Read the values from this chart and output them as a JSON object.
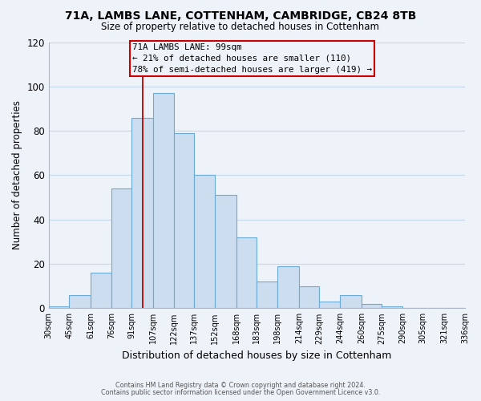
{
  "title1": "71A, LAMBS LANE, COTTENHAM, CAMBRIDGE, CB24 8TB",
  "title2": "Size of property relative to detached houses in Cottenham",
  "xlabel": "Distribution of detached houses by size in Cottenham",
  "ylabel": "Number of detached properties",
  "bin_edges": [
    30,
    45,
    61,
    76,
    91,
    107,
    122,
    137,
    152,
    168,
    183,
    198,
    214,
    229,
    244,
    260,
    275,
    290,
    305,
    321,
    336
  ],
  "bar_heights": [
    1,
    6,
    16,
    54,
    86,
    97,
    79,
    60,
    51,
    32,
    12,
    19,
    10,
    3,
    6,
    2,
    1,
    0,
    0,
    0
  ],
  "bar_color": "#ccddf0",
  "bar_edge_color": "#6aaad4",
  "grid_color": "#c8d8ec",
  "property_line_x": 99,
  "property_line_color": "#bb0000",
  "annotation_line1": "71A LAMBS LANE: 99sqm",
  "annotation_line2": "← 21% of detached houses are smaller (110)",
  "annotation_line3": "78% of semi-detached houses are larger (419) →",
  "annotation_box_color": "#cc0000",
  "ylim": [
    0,
    120
  ],
  "yticks": [
    0,
    20,
    40,
    60,
    80,
    100,
    120
  ],
  "xtick_labels": [
    "30sqm",
    "45sqm",
    "61sqm",
    "76sqm",
    "91sqm",
    "107sqm",
    "122sqm",
    "137sqm",
    "152sqm",
    "168sqm",
    "183sqm",
    "198sqm",
    "214sqm",
    "229sqm",
    "244sqm",
    "260sqm",
    "275sqm",
    "290sqm",
    "305sqm",
    "321sqm",
    "336sqm"
  ],
  "footer1": "Contains HM Land Registry data © Crown copyright and database right 2024.",
  "footer2": "Contains public sector information licensed under the Open Government Licence v3.0.",
  "background_color": "#eef2f9"
}
